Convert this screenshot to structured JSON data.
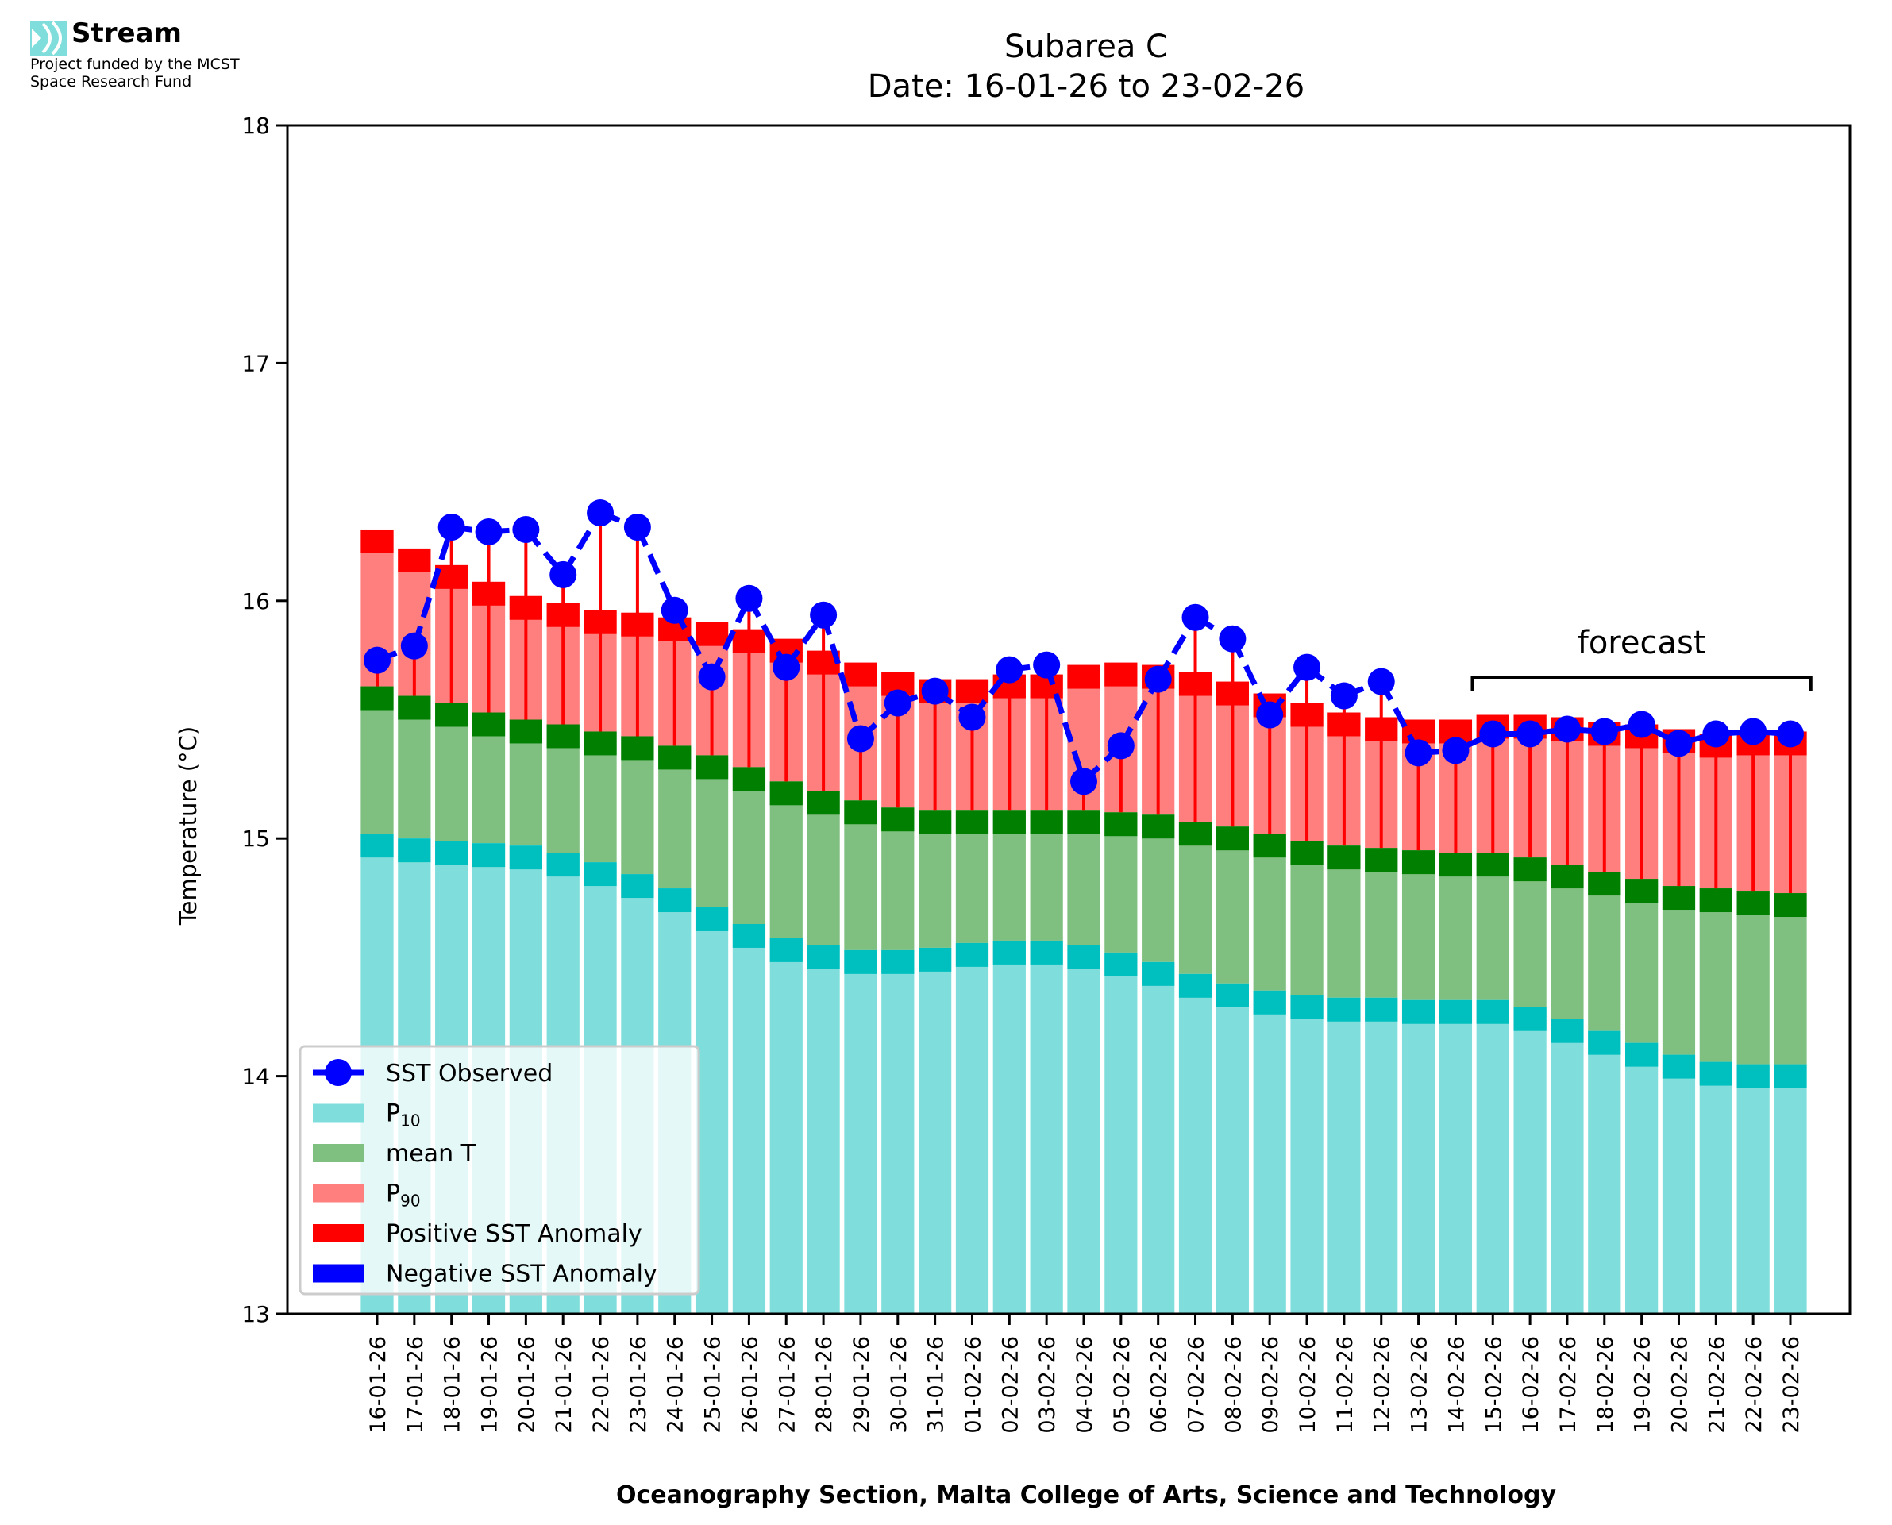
{
  "logo": {
    "name": "Stream",
    "line1": "Project funded by the MCST",
    "line2": "Space Research Fund",
    "accent_color": "#7fdedc"
  },
  "chart_data": {
    "type": "bar",
    "title": "Subarea C",
    "subtitle": "Date: 16-01-26 to 23-02-26",
    "xlabel": "Oceanography Section, Malta College of Arts, Science and Technology",
    "ylabel": "Temperature (°C)",
    "ylim": [
      13,
      18
    ],
    "yticks": [
      13,
      14,
      15,
      16,
      17,
      18
    ],
    "grid": false,
    "legend_position": "lower-left",
    "annotation": {
      "text": "forecast",
      "from_category": "15-02-26",
      "to_category": "23-02-26"
    },
    "forecast_start_index": 30,
    "categories": [
      "16-01-26",
      "17-01-26",
      "18-01-26",
      "19-01-26",
      "20-01-26",
      "21-01-26",
      "22-01-26",
      "23-01-26",
      "24-01-26",
      "25-01-26",
      "26-01-26",
      "27-01-26",
      "28-01-26",
      "29-01-26",
      "30-01-26",
      "31-01-26",
      "01-02-26",
      "02-02-26",
      "03-02-26",
      "04-02-26",
      "05-02-26",
      "06-02-26",
      "07-02-26",
      "08-02-26",
      "09-02-26",
      "10-02-26",
      "11-02-26",
      "12-02-26",
      "13-02-26",
      "14-02-26",
      "15-02-26",
      "16-02-26",
      "17-02-26",
      "18-02-26",
      "19-02-26",
      "20-02-26",
      "21-02-26",
      "22-02-26",
      "23-02-26"
    ],
    "series": [
      {
        "name": "SST Observed",
        "kind": "line",
        "color": "#0000ff",
        "values": [
          15.75,
          15.81,
          16.31,
          16.29,
          16.3,
          16.11,
          16.37,
          16.31,
          15.96,
          15.68,
          16.01,
          15.72,
          15.94,
          15.42,
          15.57,
          15.62,
          15.51,
          15.71,
          15.73,
          15.24,
          15.39,
          15.67,
          15.93,
          15.84,
          15.52,
          15.72,
          15.6,
          15.66,
          15.36,
          15.37,
          15.44,
          15.44,
          15.46,
          15.45,
          15.48,
          15.4,
          15.44,
          15.45,
          15.44
        ]
      },
      {
        "name": "P10",
        "label_main": "P",
        "label_sub": "10",
        "kind": "bar",
        "color": "#7fdedc",
        "band_color": "#00bfbf",
        "values": [
          15.02,
          15.0,
          14.99,
          14.98,
          14.97,
          14.94,
          14.9,
          14.85,
          14.79,
          14.71,
          14.64,
          14.58,
          14.55,
          14.53,
          14.53,
          14.54,
          14.56,
          14.57,
          14.57,
          14.55,
          14.52,
          14.48,
          14.43,
          14.39,
          14.36,
          14.34,
          14.33,
          14.33,
          14.32,
          14.32,
          14.32,
          14.29,
          14.24,
          14.19,
          14.14,
          14.09,
          14.06,
          14.05,
          14.05
        ]
      },
      {
        "name": "mean T",
        "kind": "bar",
        "color": "#7fbf7f",
        "band_color": "#007f00",
        "values": [
          15.64,
          15.6,
          15.57,
          15.53,
          15.5,
          15.48,
          15.45,
          15.43,
          15.39,
          15.35,
          15.3,
          15.24,
          15.2,
          15.16,
          15.13,
          15.12,
          15.12,
          15.12,
          15.12,
          15.12,
          15.11,
          15.1,
          15.07,
          15.05,
          15.02,
          14.99,
          14.97,
          14.96,
          14.95,
          14.94,
          14.94,
          14.92,
          14.89,
          14.86,
          14.83,
          14.8,
          14.79,
          14.78,
          14.77
        ]
      },
      {
        "name": "P90",
        "label_main": "P",
        "label_sub": "90",
        "kind": "bar",
        "color": "#ff7f7f",
        "band_color": "#ff0000",
        "values": [
          16.3,
          16.22,
          16.15,
          16.08,
          16.02,
          15.99,
          15.96,
          15.95,
          15.93,
          15.91,
          15.88,
          15.84,
          15.79,
          15.74,
          15.7,
          15.67,
          15.67,
          15.69,
          15.69,
          15.73,
          15.74,
          15.73,
          15.7,
          15.66,
          15.61,
          15.57,
          15.53,
          15.51,
          15.5,
          15.5,
          15.52,
          15.52,
          15.51,
          15.49,
          15.48,
          15.46,
          15.44,
          15.45,
          15.45
        ]
      }
    ],
    "legend": [
      {
        "label": "SST Observed",
        "kind": "line-marker",
        "color": "#0000ff"
      },
      {
        "label_main": "P",
        "label_sub": "10",
        "kind": "patch",
        "color": "#7fdedc"
      },
      {
        "label": "mean T",
        "kind": "patch",
        "color": "#7fbf7f"
      },
      {
        "label_main": "P",
        "label_sub": "90",
        "kind": "patch",
        "color": "#ff7f7f"
      },
      {
        "label": "Positive SST Anomaly",
        "kind": "patch",
        "color": "#ff0000"
      },
      {
        "label": "Negative SST Anomaly",
        "kind": "patch",
        "color": "#0000ff"
      }
    ]
  }
}
